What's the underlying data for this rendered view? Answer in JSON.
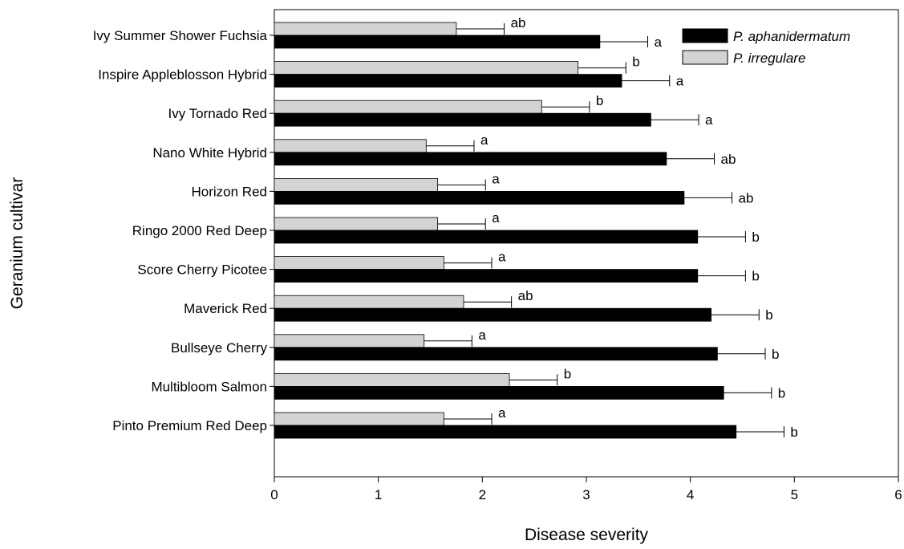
{
  "chart_data": {
    "type": "bar",
    "orientation": "horizontal",
    "xlabel": "Disease severity",
    "ylabel": "Geranium cultivar",
    "xlim": [
      0,
      6
    ],
    "xticks": [
      "0",
      "1",
      "2",
      "3",
      "4",
      "5",
      "6"
    ],
    "grid": false,
    "legend_position": "top-right",
    "categories": [
      "Ivy Summer Shower Fuchsia",
      "Inspire Appleblosson Hybrid",
      "Ivy Tornado Red",
      "Nano White Hybrid",
      "Horizon Red",
      "Ringo 2000 Red Deep",
      "Score Cherry Picotee",
      "Maverick Red",
      "Bullseye Cherry",
      "Multibloom Salmon",
      "Pinto Premium Red Deep"
    ],
    "series": [
      {
        "name": "P. aphanidermatum",
        "color": "#000000",
        "values": [
          3.13,
          3.34,
          3.62,
          3.77,
          3.94,
          4.07,
          4.07,
          4.2,
          4.26,
          4.32,
          4.44
        ],
        "errors": [
          0.46,
          0.46,
          0.46,
          0.46,
          0.46,
          0.46,
          0.46,
          0.46,
          0.46,
          0.46,
          0.46
        ],
        "letters": [
          "a",
          "a",
          "a",
          "ab",
          "ab",
          "b",
          "b",
          "b",
          "b",
          "b",
          "b"
        ]
      },
      {
        "name": "P. irregulare",
        "color": "#d3d3d3",
        "values": [
          1.75,
          2.92,
          2.57,
          1.46,
          1.57,
          1.57,
          1.63,
          1.82,
          1.44,
          2.26,
          1.63
        ],
        "errors": [
          0.46,
          0.46,
          0.46,
          0.46,
          0.46,
          0.46,
          0.46,
          0.46,
          0.46,
          0.46,
          0.46
        ],
        "letters": [
          "ab",
          "b",
          "b",
          "a",
          "a",
          "a",
          "a",
          "ab",
          "a",
          "b",
          "a"
        ]
      }
    ]
  }
}
